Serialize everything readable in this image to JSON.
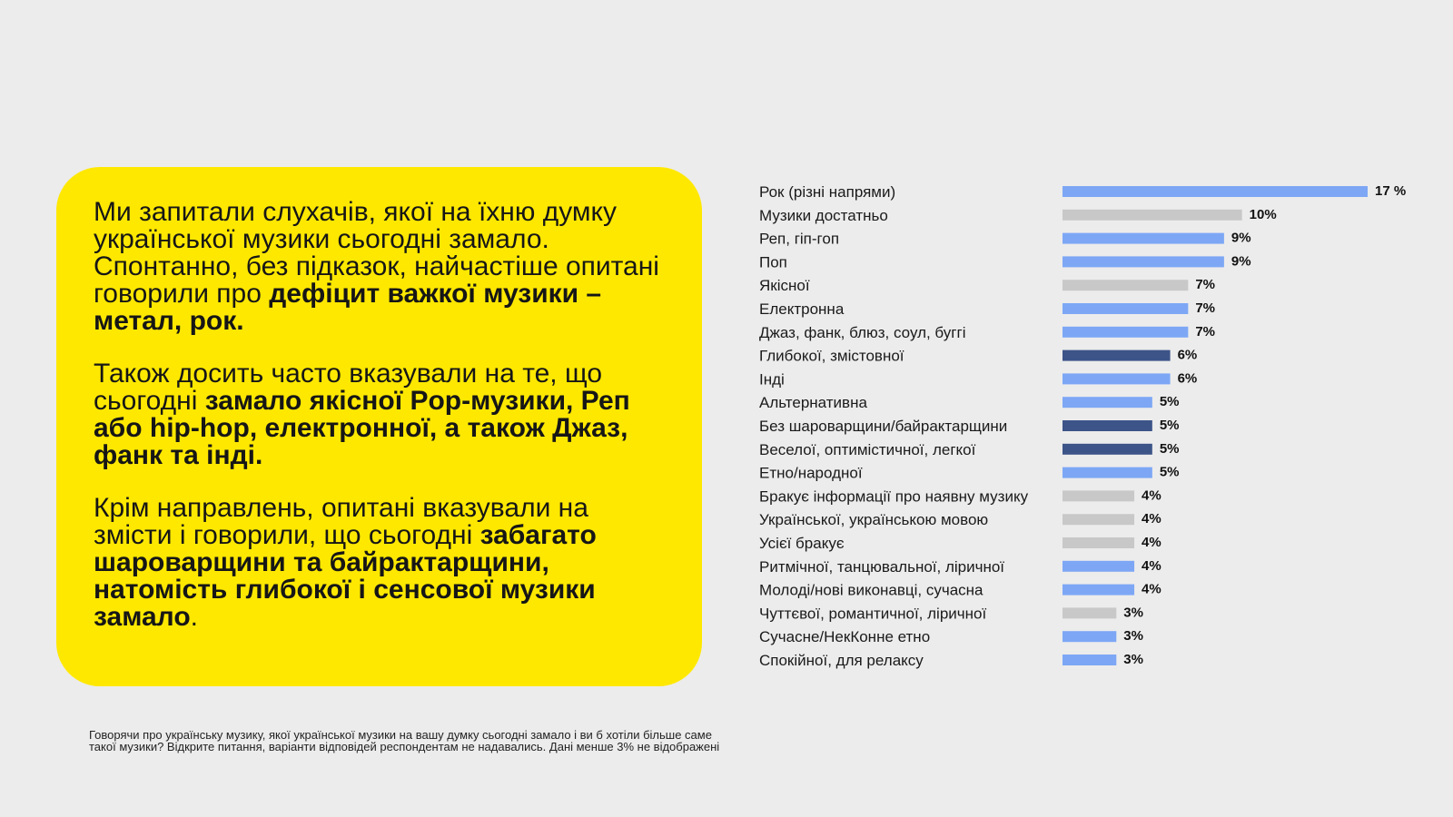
{
  "card": {
    "p1": {
      "normal": "Ми запитали слухачів, якої на їхню думку української музики сьогодні замало. Спонтанно, без підказок, найчастіше опитані говорили про ",
      "bold": "дефіцит важкої музики – метал, рок."
    },
    "p2": {
      "normal": "Також досить часто вказували на те, що сьогодні ",
      "bold": "замало якісної Pop-музики, Реп або hip-hop, електронної, а також Джаз, фанк та інді."
    },
    "p3": {
      "normal": "Крім направлень, опитані вказували на змісти і говорили, що сьогодні ",
      "bold": "забагато шароварщини та байрактарщини, натомість глибокої і сенсової музики замало",
      "tail": "."
    }
  },
  "footnote": {
    "line1": "Говорячи про українську музику,  якої української музики на вашу думку сьогодні замало і ви б хотіли більше саме",
    "line2": "такої музики? Відкрите питання, варіанти відповідей респондентам не надавались. Дані менше 3% не відображені"
  },
  "colors": {
    "background": "#ececec",
    "card": "#ffe800",
    "genre": "#7da7f5",
    "other": "#c8c8c8",
    "content": "#3c5488"
  },
  "chart_data": {
    "type": "bar",
    "orientation": "horizontal",
    "unit": "%",
    "categories": [
      "Рок (різні напрями)",
      "Музики достатньо",
      "Реп, гіп-гоп",
      "Поп",
      "Якісної",
      "Електронна",
      "Джаз, фанк, блюз, соул, буггі",
      "Глибокої, змістовної",
      "Інді",
      "Альтернативна",
      "Без шароварщини/байрактарщини",
      "Веселої, оптимістичної, легкої",
      "Етно/народної",
      "Бракує інформації про наявну музику",
      "Української, українською мовою",
      "Усієї бракує",
      "Ритмічної, танцювальної, ліричної",
      "Молоді/нові виконавці, сучасна",
      "Чуттєвої, романтичної, ліричної",
      "Сучасне/НекКонне етно",
      "Спокійної, для релаксу"
    ],
    "values": [
      17,
      10,
      9,
      9,
      7,
      7,
      7,
      6,
      6,
      5,
      5,
      5,
      5,
      4,
      4,
      4,
      4,
      4,
      3,
      3,
      3
    ],
    "value_labels": [
      "17 %",
      "10%",
      "9%",
      "9%",
      "7%",
      "7%",
      "7%",
      "6%",
      "6%",
      "5%",
      "5%",
      "5%",
      "5%",
      "4%",
      "4%",
      "4%",
      "4%",
      "4%",
      "3%",
      "3%",
      "3%"
    ],
    "bar_colors": [
      "genre",
      "other",
      "genre",
      "genre",
      "other",
      "genre",
      "genre",
      "content",
      "genre",
      "genre",
      "content",
      "content",
      "genre",
      "other",
      "other",
      "other",
      "genre",
      "genre",
      "other",
      "genre",
      "genre"
    ],
    "xlim": [
      0,
      17
    ],
    "grid": false,
    "legend": "none"
  }
}
